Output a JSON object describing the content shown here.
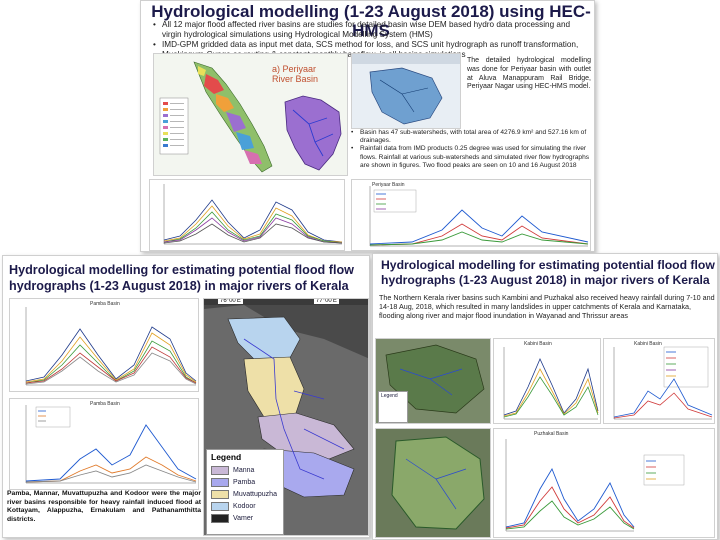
{
  "top_slide": {
    "title": "Hydrological modelling (1-23 August 2018) using HEC-HMS",
    "bullets": [
      "All 12 major flood affected river basins are studies for detailed basin wise DEM based hydro data processing and virgin hydrological simulations using Hydrological Modelling System (HMS)",
      "IMD-GPM gridded data as input met data, SCS method for loss, and SCS unit hydrograph as runoff transformation, Muskingum-Cunge as routing & constant monthly baseflow, in all basins simulations"
    ],
    "inset_label_line1": "a) Periyaar",
    "inset_label_line2": "River Basin",
    "right_text": "The detailed hydrological modelling was done for Periyaar basin with outlet at Aluva Manappuram Rail Bridge, Periyaar Nagar using HEC-HMS model.",
    "basin_bullets": [
      "Basin has 47 sub-watersheds, with total area of 4276.9 km² and 527.16 km of drainages.",
      "Rainfall data from IMD products 0.25 degree was used for simulating the river flows. Rainfall at various sub-watersheds and simulated river flow hydrographs are shown in figures. Two flood peaks are seen on 10 and 16 August 2018"
    ],
    "chart_right_label": "Periyaar Basin"
  },
  "left_slide": {
    "title_line1": "Hydrological modelling for estimating potential flood flow",
    "title_line2": "hydrographs (1-23 August 2018) in major rivers of Kerala",
    "chart1_title": "Pamba Basin",
    "chart2_title": "Pamba Basin",
    "legend_title": "Legend",
    "legend_items": [
      {
        "label": "Manna",
        "color": "#c9b8d6"
      },
      {
        "label": "Pamba",
        "color": "#a9a9ee"
      },
      {
        "label": "Muvattupuzha",
        "color": "#eee0a8"
      },
      {
        "label": "Kodoor",
        "color": "#b8d4ee"
      },
      {
        "label": "Vamer",
        "color": "#222222"
      }
    ],
    "coord_left": "76°00'E",
    "coord_right": "77°00'E",
    "caption": "Pamba, Mannar, Muvattupuzha and Kodoor were the major river basins responsible for heavy rainfall induced flood at Kottayam, Alappuzha, Ernakulam and Pathanamthitta districts."
  },
  "right_slide": {
    "title_line1": "Hydrological modelling for estimating potential flood flow",
    "title_line2": "hydrographs (1-23 August 2018) in major rivers of Kerala",
    "paragraph": "The Northern Kerala river basins such Kambini and Puzhakal also received heavy rainfall during 7-10 and 14-18 Aug, 2018, which resulted in many landslides in upper catchments of Kerala and Karnataka, flooding along river and major flood inundation in Wayanad and Thrissur areas",
    "legend_label": "Legend",
    "chart_a_title": "Kabini Basin",
    "chart_b_title": "Kabini Basin",
    "chart_c_title": "Puzhakal Basin"
  },
  "colors": {
    "title": "#1c1a4a",
    "map_periyar": "#9b6fd0",
    "map_kerala_green": "#5a9a3a"
  }
}
